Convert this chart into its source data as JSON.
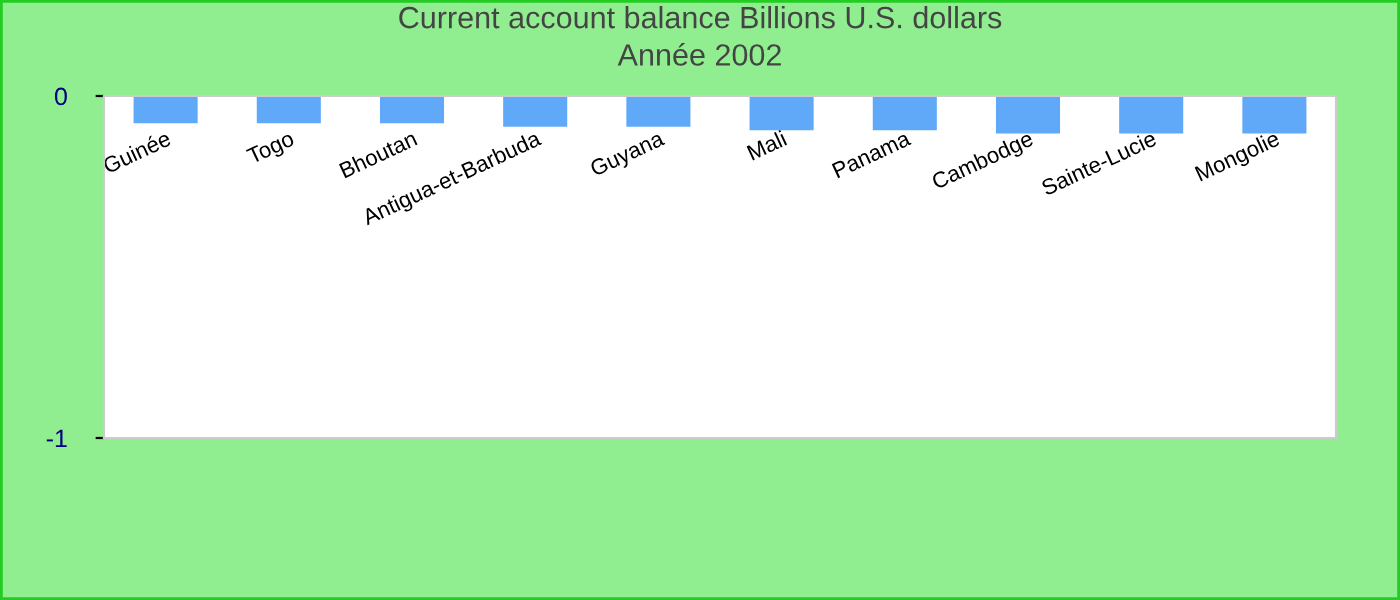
{
  "chart_data": {
    "type": "bar",
    "title": "Current account balance Billions U.S. dollars\nAnnée 2002",
    "categories": [
      "Guinée",
      "Togo",
      "Bhoutan",
      "Antigua-et-Barbuda",
      "Guyana",
      "Mali",
      "Panama",
      "Cambodge",
      "Sainte-Lucie",
      "Mongolie"
    ],
    "values": [
      -0.08,
      -0.08,
      -0.08,
      -0.09,
      -0.09,
      -0.1,
      -0.1,
      -0.11,
      -0.11,
      -0.11
    ],
    "color": "#60a8f8",
    "ylim": [
      -1,
      0
    ],
    "yticks": [
      -1,
      0
    ],
    "grid": false,
    "legend": false
  }
}
